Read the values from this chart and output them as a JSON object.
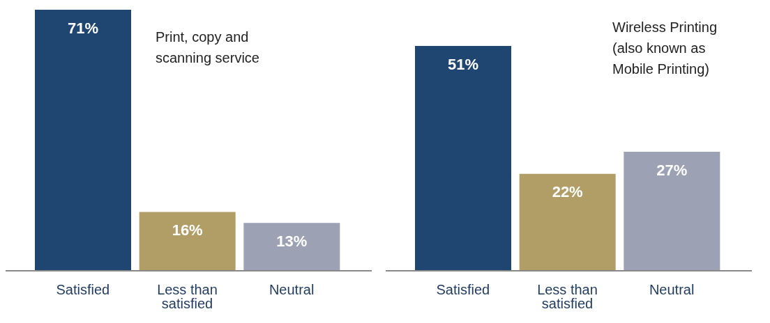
{
  "chart_data": [
    {
      "type": "bar",
      "title": "Print, copy and scanning service",
      "categories": [
        "Satisfied",
        "Less than satisfied",
        "Neutral"
      ],
      "values": [
        71,
        16,
        13
      ],
      "value_labels": [
        "71%",
        "16%",
        "13%"
      ],
      "colors": [
        "#1f4571",
        "#b09e66",
        "#9ca1b3"
      ],
      "grid": false,
      "legend": false
    },
    {
      "type": "bar",
      "title": "Wireless Printing (also known as Mobile Printing)",
      "categories": [
        "Satisfied",
        "Less than satisfied",
        "Neutral"
      ],
      "values": [
        51,
        22,
        27
      ],
      "value_labels": [
        "51%",
        "22%",
        "27%"
      ],
      "colors": [
        "#1f4571",
        "#b09e66",
        "#9ca1b3"
      ],
      "grid": false,
      "legend": false
    }
  ]
}
